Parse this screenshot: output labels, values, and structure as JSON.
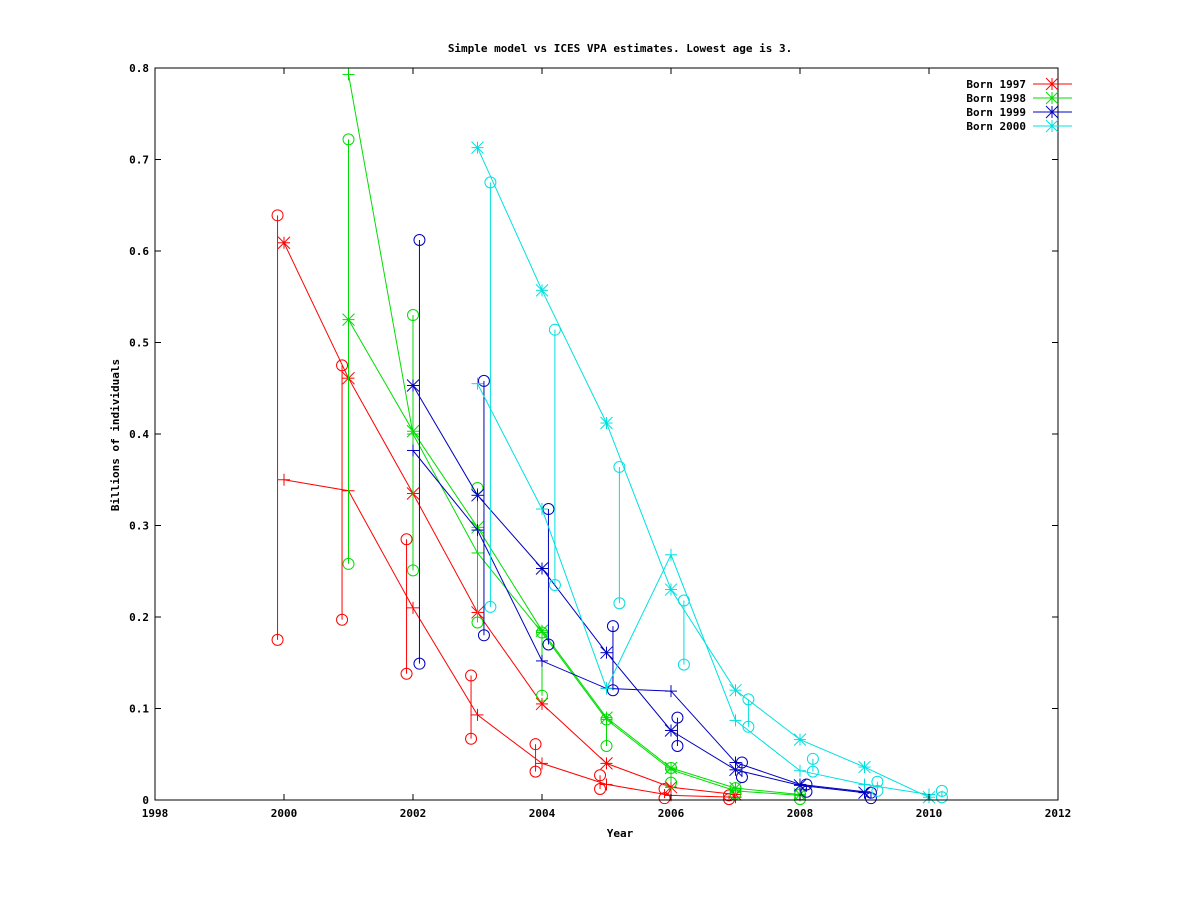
{
  "chart_data": {
    "type": "line",
    "title": "Simple model vs ICES VPA estimates. Lowest age is 3.",
    "xlabel": "Year",
    "ylabel": "Billions of individuals",
    "xlim": [
      1998,
      2012
    ],
    "ylim": [
      0,
      0.8
    ],
    "xticks": [
      1998,
      2000,
      2002,
      2004,
      2006,
      2008,
      2010,
      2012
    ],
    "yticks": [
      0,
      0.1,
      0.2,
      0.3,
      0.4,
      0.5,
      0.6,
      0.7,
      0.8
    ],
    "xtick_labels": [
      "1998",
      "2000",
      "2002",
      "2004",
      "2006",
      "2008",
      "2010",
      "2012"
    ],
    "ytick_labels": [
      "0",
      "0.1",
      "0.2",
      "0.3",
      "0.4",
      "0.5",
      "0.6",
      "0.7",
      "0.8"
    ],
    "grid": false,
    "legend_position": "top-right",
    "series": [
      {
        "name": "Born 1997",
        "color": "#ff0000",
        "star_points": [
          [
            2000.0,
            0.609
          ],
          [
            2001.0,
            0.461
          ],
          [
            2002.0,
            0.335
          ],
          [
            2003.0,
            0.205
          ],
          [
            2004.0,
            0.105
          ],
          [
            2005.0,
            0.04
          ],
          [
            2006.0,
            0.014
          ],
          [
            2007.0,
            0.006
          ]
        ],
        "plus_points": [
          [
            2000.0,
            0.35
          ],
          [
            2001.0,
            0.338
          ],
          [
            2002.0,
            0.21
          ],
          [
            2003.0,
            0.093
          ],
          [
            2004.0,
            0.04
          ],
          [
            2005.0,
            0.017
          ],
          [
            2006.0,
            0.005
          ],
          [
            2007.0,
            0.003
          ]
        ],
        "circle_pairs": [
          [
            1999.9,
            0.639,
            0.175
          ],
          [
            2000.9,
            0.475,
            0.197
          ],
          [
            2001.9,
            0.285,
            0.138
          ],
          [
            2002.9,
            0.136,
            0.067
          ],
          [
            2003.9,
            0.061,
            0.031
          ],
          [
            2004.9,
            0.027,
            0.012
          ],
          [
            2005.9,
            0.012,
            0.002
          ],
          [
            2006.9,
            0.005,
            0.001
          ]
        ]
      },
      {
        "name": "Born 1998",
        "color": "#00dd00",
        "star_points": [
          [
            2001.0,
            0.525
          ],
          [
            2002.0,
            0.403
          ],
          [
            2003.0,
            0.298
          ],
          [
            2004.0,
            0.185
          ],
          [
            2005.0,
            0.09
          ],
          [
            2006.0,
            0.035
          ],
          [
            2007.0,
            0.013
          ],
          [
            2008.0,
            0.006
          ]
        ],
        "plus_points": [
          [
            2001.0,
            0.793
          ],
          [
            2002.0,
            0.4
          ],
          [
            2003.0,
            0.27
          ],
          [
            2004.0,
            0.183
          ],
          [
            2005.0,
            0.088
          ],
          [
            2006.0,
            0.033
          ],
          [
            2007.0,
            0.01
          ],
          [
            2008.0,
            0.005
          ]
        ],
        "circle_pairs": [
          [
            2001.0,
            0.722,
            0.258
          ],
          [
            2002.0,
            0.53,
            0.251
          ],
          [
            2003.0,
            0.341,
            0.194
          ],
          [
            2004.0,
            0.183,
            0.114
          ],
          [
            2005.0,
            0.088,
            0.059
          ],
          [
            2006.0,
            0.035,
            0.019
          ],
          [
            2007.0,
            0.013,
            0.007
          ],
          [
            2008.0,
            0.006,
            0.001
          ]
        ]
      },
      {
        "name": "Born 1999",
        "color": "#0000c0",
        "star_points": [
          [
            2002.0,
            0.453
          ],
          [
            2003.0,
            0.333
          ],
          [
            2004.0,
            0.253
          ],
          [
            2005.0,
            0.161
          ],
          [
            2006.0,
            0.076
          ],
          [
            2007.0,
            0.033
          ],
          [
            2008.0,
            0.016
          ],
          [
            2009.0,
            0.008
          ]
        ],
        "plus_points": [
          [
            2002.0,
            0.382
          ],
          [
            2003.0,
            0.295
          ],
          [
            2004.0,
            0.152
          ],
          [
            2005.0,
            0.122
          ],
          [
            2006.0,
            0.119
          ],
          [
            2007.0,
            0.041
          ],
          [
            2008.0,
            0.017
          ],
          [
            2009.0,
            0.009
          ]
        ],
        "circle_pairs": [
          [
            2002.1,
            0.612,
            0.149
          ],
          [
            2003.1,
            0.458,
            0.18
          ],
          [
            2004.1,
            0.318,
            0.17
          ],
          [
            2005.1,
            0.19,
            0.12
          ],
          [
            2006.1,
            0.09,
            0.059
          ],
          [
            2007.1,
            0.041,
            0.025
          ],
          [
            2008.1,
            0.017,
            0.009
          ],
          [
            2009.1,
            0.008,
            0.002
          ]
        ]
      },
      {
        "name": "Born 2000",
        "color": "#00e0e0",
        "star_points": [
          [
            2003.0,
            0.713
          ],
          [
            2004.0,
            0.557
          ],
          [
            2005.0,
            0.412
          ],
          [
            2006.0,
            0.23
          ],
          [
            2007.0,
            0.12
          ],
          [
            2008.0,
            0.066
          ],
          [
            2009.0,
            0.036
          ],
          [
            2010.0,
            0.003
          ]
        ],
        "plus_points": [
          [
            2003.0,
            0.455
          ],
          [
            2004.0,
            0.318
          ],
          [
            2005.0,
            0.122
          ],
          [
            2006.0,
            0.268
          ],
          [
            2007.0,
            0.087
          ],
          [
            2008.0,
            0.032
          ],
          [
            2009.0,
            0.017
          ],
          [
            2010.0,
            0.006
          ]
        ],
        "circle_pairs": [
          [
            2003.2,
            0.675,
            0.211
          ],
          [
            2004.2,
            0.514,
            0.235
          ],
          [
            2005.2,
            0.364,
            0.215
          ],
          [
            2006.2,
            0.218,
            0.148
          ],
          [
            2007.2,
            0.11,
            0.08
          ],
          [
            2008.2,
            0.045,
            0.031
          ],
          [
            2009.2,
            0.02,
            0.01
          ],
          [
            2010.2,
            0.01,
            0.003
          ]
        ]
      }
    ]
  }
}
